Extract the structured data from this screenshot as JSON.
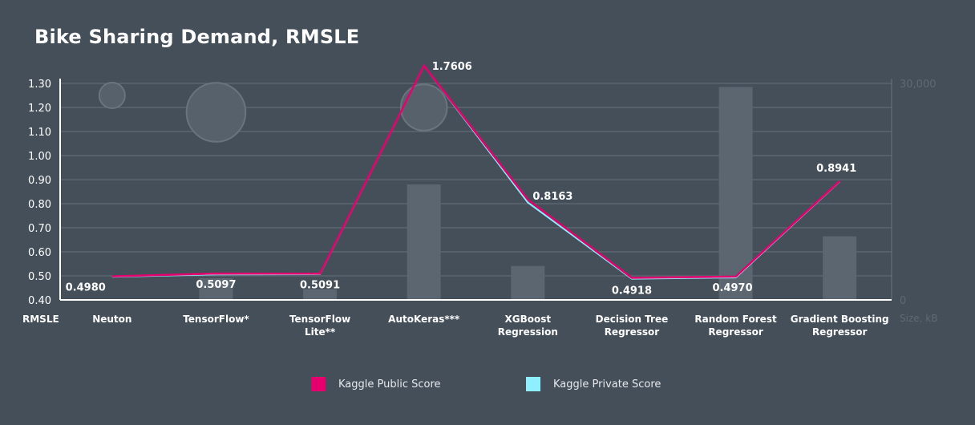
{
  "chart_data": {
    "type": "line",
    "title": "Bike Sharing Demand, RMSLE",
    "ylabel": "RMSLE",
    "y2label": "Size, kB",
    "ylim": [
      0.4,
      1.3
    ],
    "y_ticks": [
      "1.30",
      "1.20",
      "1.10",
      "1.00",
      "0.90",
      "0.80",
      "0.70",
      "0.60",
      "0.50",
      "0.40"
    ],
    "y2lim": [
      0,
      30000
    ],
    "y2_ticks": [
      "30,000",
      "0"
    ],
    "grid": true,
    "categories": [
      [
        "Neuton"
      ],
      [
        "TensorFlow*"
      ],
      [
        "TensorFlow",
        "Lite**"
      ],
      [
        "AutoKeras***"
      ],
      [
        "XGBoost",
        "Regression"
      ],
      [
        "Decision Tree",
        "Regressor"
      ],
      [
        "Random Forest",
        "Regressor"
      ],
      [
        "Gradient Boosting",
        "Regressor"
      ]
    ],
    "series": [
      {
        "name": "Kaggle Public Score",
        "color": "#e6006e",
        "values": [
          0.498,
          0.5097,
          0.5091,
          1.7606,
          0.8163,
          0.4918,
          0.497,
          0.8941
        ]
      },
      {
        "name": "Kaggle Private Score",
        "color": "#8fefff",
        "values": [
          0.496,
          0.506,
          0.507,
          1.74,
          0.805,
          0.488,
          0.493,
          0.892
        ]
      }
    ],
    "data_labels": [
      "0.4980",
      "0.5097",
      "0.5091",
      "1.7606",
      "0.8163",
      "0.4918",
      "0.4970",
      "0.8941"
    ],
    "size_bars": [
      0,
      3000,
      1500,
      16000,
      4700,
      0,
      29500,
      8800
    ],
    "bubbles": [
      {
        "category": 0,
        "y": 1.25,
        "size": 1
      },
      {
        "category": 1,
        "y": 1.18,
        "size": 2.3
      },
      {
        "category": 3,
        "y": 1.2,
        "size": 1.8
      }
    ],
    "legend": "bottom-center"
  }
}
